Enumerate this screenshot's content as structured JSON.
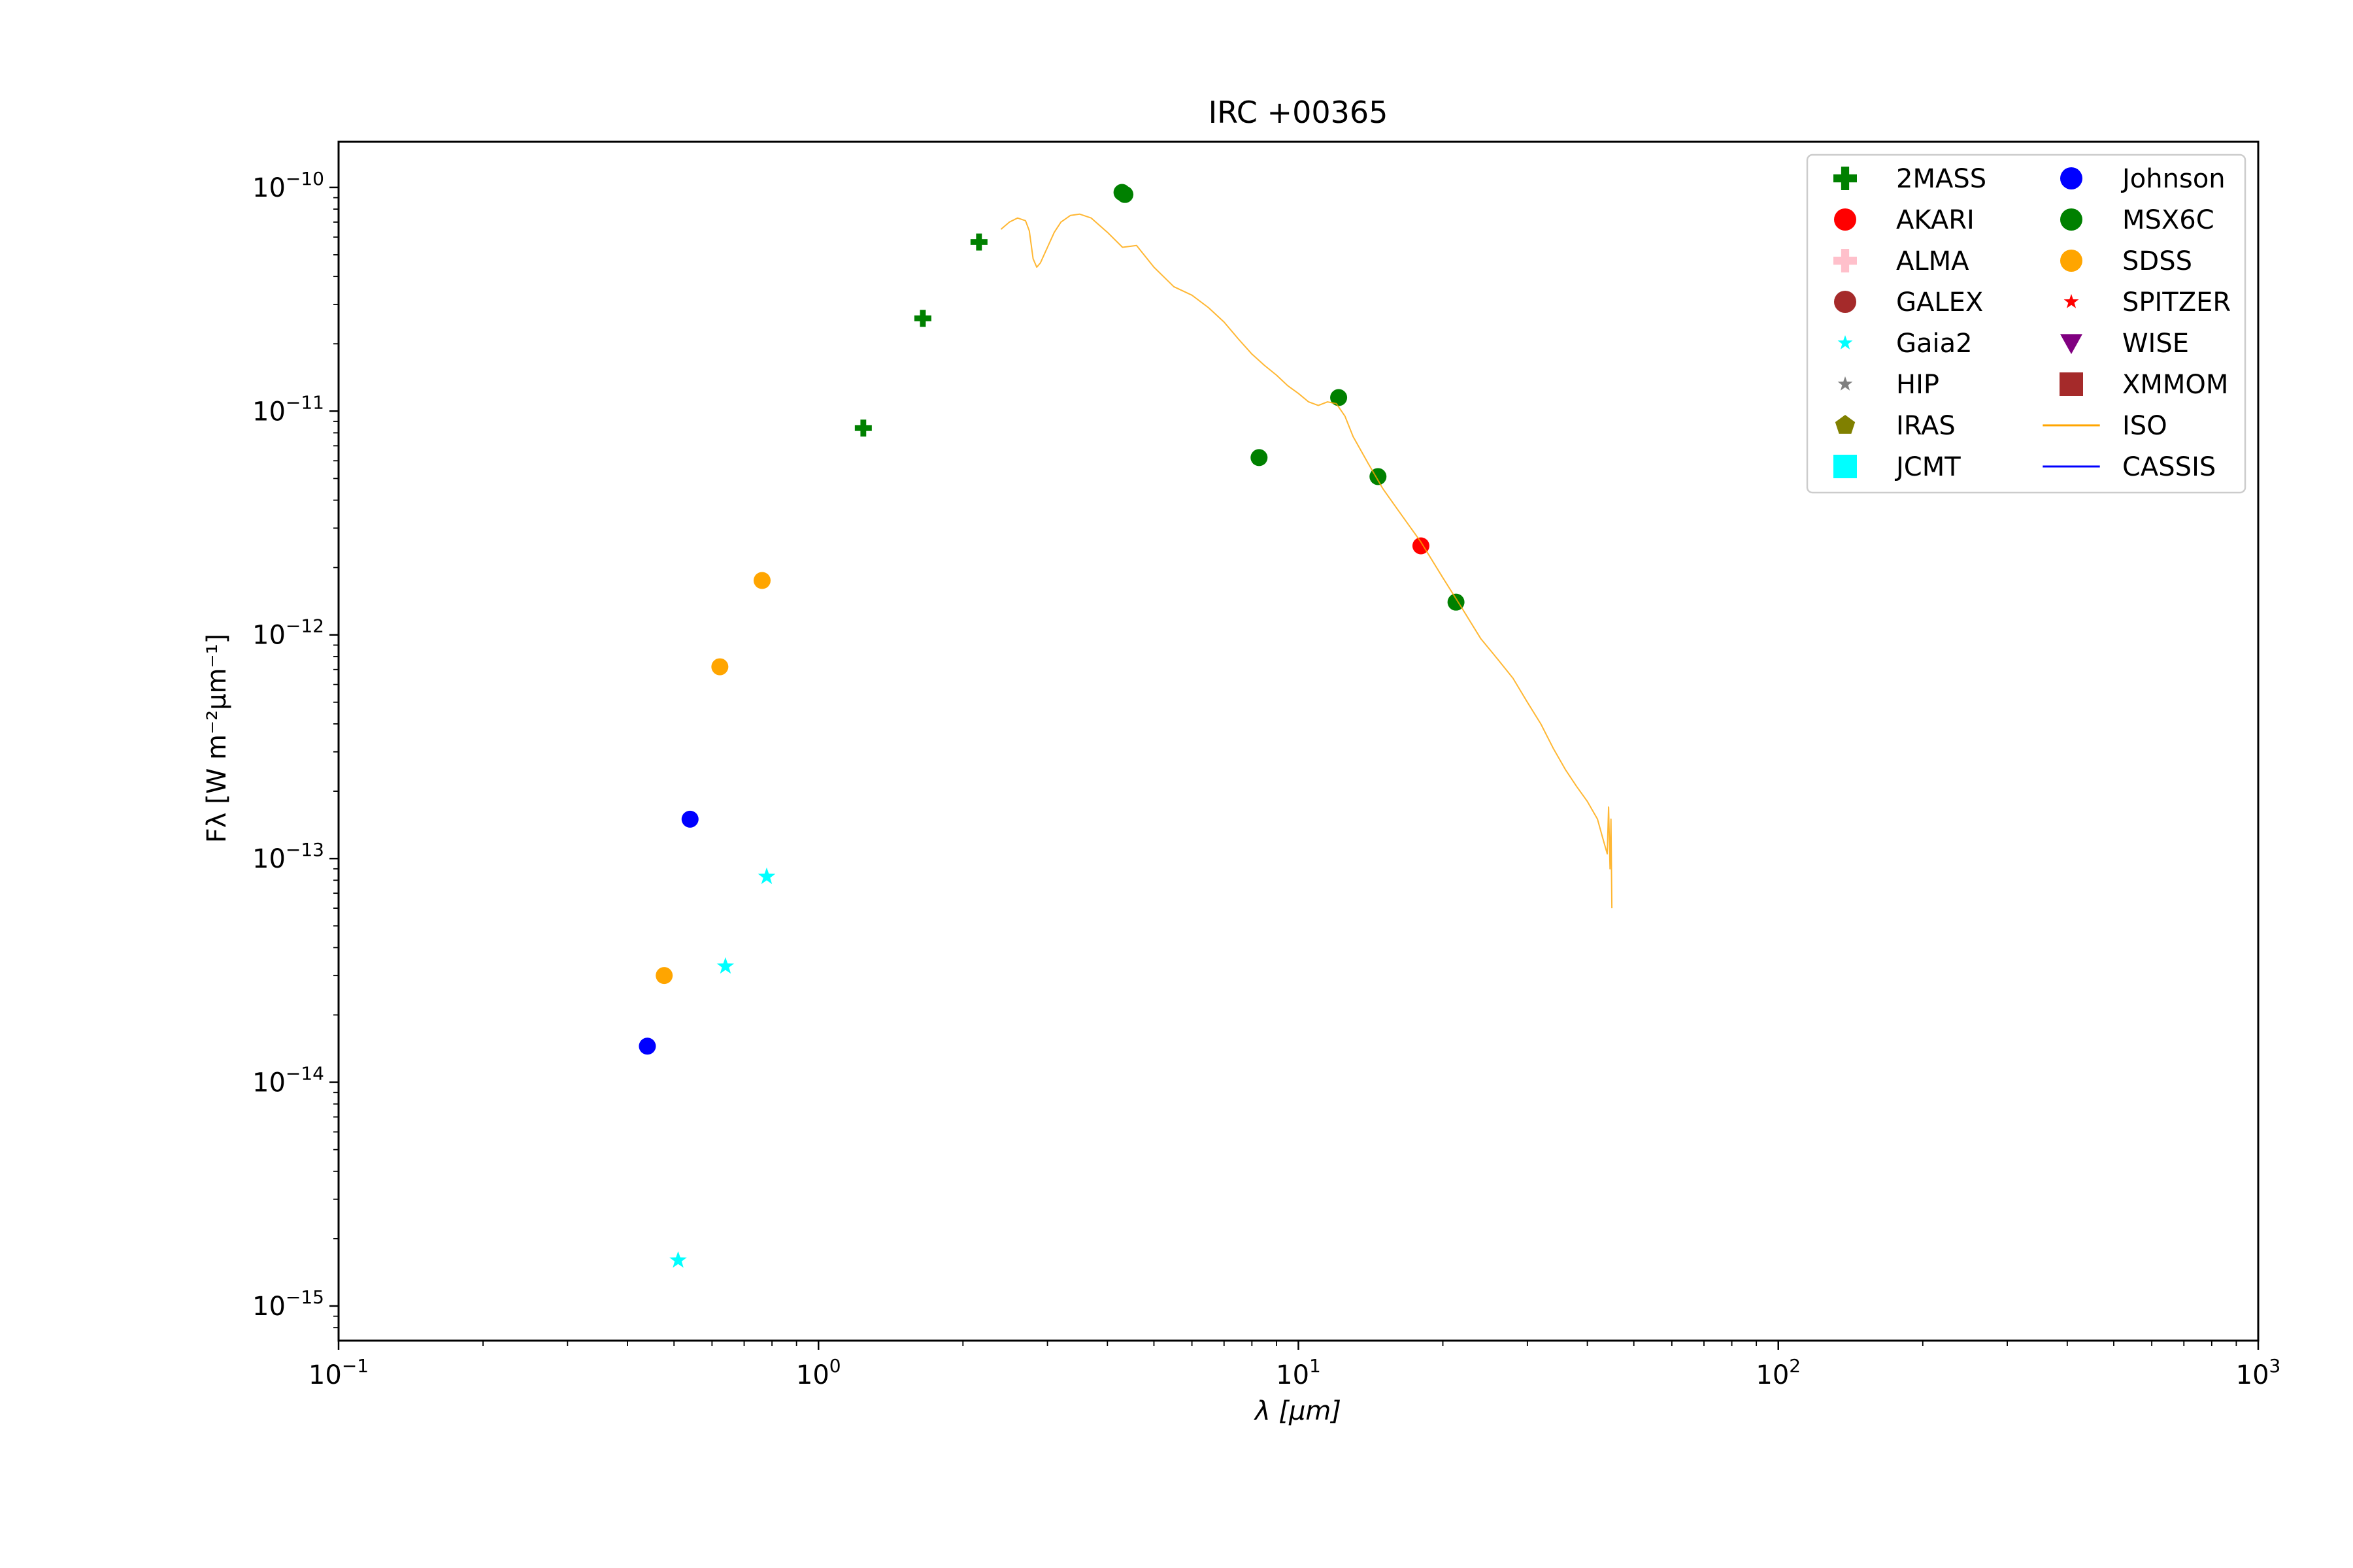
{
  "chart_data": {
    "type": "scatter",
    "title": "IRC +00365",
    "xlabel": "λ [μm]",
    "ylabel": "Fλ [W m⁻²μm⁻¹]",
    "xscale": "log",
    "yscale": "log",
    "xlim": [
      0.1,
      1000
    ],
    "ylim": [
      7e-16,
      1.6e-10
    ],
    "x_ticks": [
      {
        "value": 0.1,
        "base": "10",
        "exp": "−1"
      },
      {
        "value": 1,
        "base": "10",
        "exp": "0"
      },
      {
        "value": 10,
        "base": "10",
        "exp": "1"
      },
      {
        "value": 100,
        "base": "10",
        "exp": "2"
      },
      {
        "value": 1000,
        "base": "10",
        "exp": "3"
      }
    ],
    "y_ticks": [
      {
        "value": 1e-15,
        "base": "10",
        "exp": "−15"
      },
      {
        "value": 1e-14,
        "base": "10",
        "exp": "−14"
      },
      {
        "value": 1e-13,
        "base": "10",
        "exp": "−13"
      },
      {
        "value": 1e-12,
        "base": "10",
        "exp": "−12"
      },
      {
        "value": 1e-11,
        "base": "10",
        "exp": "−11"
      },
      {
        "value": 1e-10,
        "base": "10",
        "exp": "−10"
      }
    ],
    "legend_position": "top-right",
    "legend_columns": 2,
    "series": [
      {
        "name": "2MASS",
        "marker": "plus",
        "color": "#008000",
        "points": [
          [
            1.24,
            8.4e-12
          ],
          [
            1.65,
            2.6e-11
          ],
          [
            2.16,
            5.7e-11
          ]
        ]
      },
      {
        "name": "AKARI",
        "marker": "circle",
        "color": "#ff0000",
        "points": [
          [
            18.0,
            2.5e-12
          ]
        ]
      },
      {
        "name": "ALMA",
        "marker": "plus",
        "color": "#ffc0cb",
        "points": []
      },
      {
        "name": "GALEX",
        "marker": "circle",
        "color": "#a52a2a",
        "points": []
      },
      {
        "name": "Gaia2",
        "marker": "star",
        "color": "#00ffff",
        "points": [
          [
            0.51,
            1.6e-15
          ],
          [
            0.64,
            3.3e-14
          ],
          [
            0.78,
            8.3e-14
          ]
        ]
      },
      {
        "name": "HIP",
        "marker": "star",
        "color": "#808080",
        "points": []
      },
      {
        "name": "IRAS",
        "marker": "pentagon",
        "color": "#808000",
        "points": []
      },
      {
        "name": "JCMT",
        "marker": "square",
        "color": "#00ffff",
        "points": []
      },
      {
        "name": "Johnson",
        "marker": "circle",
        "color": "#0000ff",
        "points": [
          [
            0.44,
            1.45e-14
          ],
          [
            0.54,
            1.5e-13
          ]
        ]
      },
      {
        "name": "MSX6C",
        "marker": "circle",
        "color": "#008000",
        "points": [
          [
            4.29,
            9.5e-11
          ],
          [
            4.35,
            9.3e-11
          ],
          [
            8.28,
            6.2e-12
          ],
          [
            12.13,
            1.15e-11
          ],
          [
            14.65,
            5.1e-12
          ],
          [
            21.3,
            1.4e-12
          ]
        ]
      },
      {
        "name": "SDSS",
        "marker": "circle",
        "color": "#ffa500",
        "points": [
          [
            0.477,
            3e-14
          ],
          [
            0.623,
            7.2e-13
          ],
          [
            0.763,
            1.75e-12
          ]
        ]
      },
      {
        "name": "SPITZER",
        "marker": "star",
        "color": "#ff0000",
        "points": []
      },
      {
        "name": "WISE",
        "marker": "triangle-down",
        "color": "#800080",
        "points": []
      },
      {
        "name": "XMMOM",
        "marker": "square",
        "color": "#a52a2a",
        "points": []
      },
      {
        "name": "ISO",
        "marker": "line",
        "color": "#ffa500",
        "points": [
          [
            2.4,
            6.5e-11
          ],
          [
            2.5,
            7e-11
          ],
          [
            2.6,
            7.3e-11
          ],
          [
            2.7,
            7.1e-11
          ],
          [
            2.75,
            6.4e-11
          ],
          [
            2.8,
            4.8e-11
          ],
          [
            2.85,
            4.4e-11
          ],
          [
            2.9,
            4.6e-11
          ],
          [
            3.0,
            5.4e-11
          ],
          [
            3.1,
            6.3e-11
          ],
          [
            3.2,
            7e-11
          ],
          [
            3.35,
            7.5e-11
          ],
          [
            3.5,
            7.6e-11
          ],
          [
            3.7,
            7.3e-11
          ],
          [
            4.0,
            6.3e-11
          ],
          [
            4.3,
            5.4e-11
          ],
          [
            4.6,
            5.5e-11
          ],
          [
            5.0,
            4.4e-11
          ],
          [
            5.5,
            3.6e-11
          ],
          [
            6.0,
            3.3e-11
          ],
          [
            6.5,
            2.9e-11
          ],
          [
            7.0,
            2.5e-11
          ],
          [
            7.5,
            2.1e-11
          ],
          [
            8.0,
            1.8e-11
          ],
          [
            8.5,
            1.6e-11
          ],
          [
            9.0,
            1.45e-11
          ],
          [
            9.5,
            1.3e-11
          ],
          [
            10.0,
            1.2e-11
          ],
          [
            10.5,
            1.1e-11
          ],
          [
            11.0,
            1.06e-11
          ],
          [
            11.5,
            1.1e-11
          ],
          [
            12.0,
            1.08e-11
          ],
          [
            12.5,
            9.5e-12
          ],
          [
            13.0,
            7.7e-12
          ],
          [
            14.0,
            5.8e-12
          ],
          [
            15.0,
            4.5e-12
          ],
          [
            16.0,
            3.7e-12
          ],
          [
            18.0,
            2.6e-12
          ],
          [
            20.0,
            1.8e-12
          ],
          [
            22.0,
            1.3e-12
          ],
          [
            24.0,
            9.6e-13
          ],
          [
            26.0,
            7.8e-13
          ],
          [
            28.0,
            6.4e-13
          ],
          [
            30.0,
            5e-13
          ],
          [
            32.0,
            4e-13
          ],
          [
            34.0,
            3.1e-13
          ],
          [
            36.0,
            2.5e-13
          ],
          [
            38.0,
            2.1e-13
          ],
          [
            40.0,
            1.8e-13
          ],
          [
            42.0,
            1.5e-13
          ],
          [
            43.0,
            1.25e-13
          ],
          [
            44.0,
            1.05e-13
          ],
          [
            44.3,
            1.7e-13
          ],
          [
            44.6,
            9e-14
          ],
          [
            44.8,
            1.5e-13
          ],
          [
            45.0,
            6e-14
          ]
        ]
      },
      {
        "name": "CASSIS",
        "marker": "line",
        "color": "#0000ff",
        "points": []
      }
    ]
  }
}
